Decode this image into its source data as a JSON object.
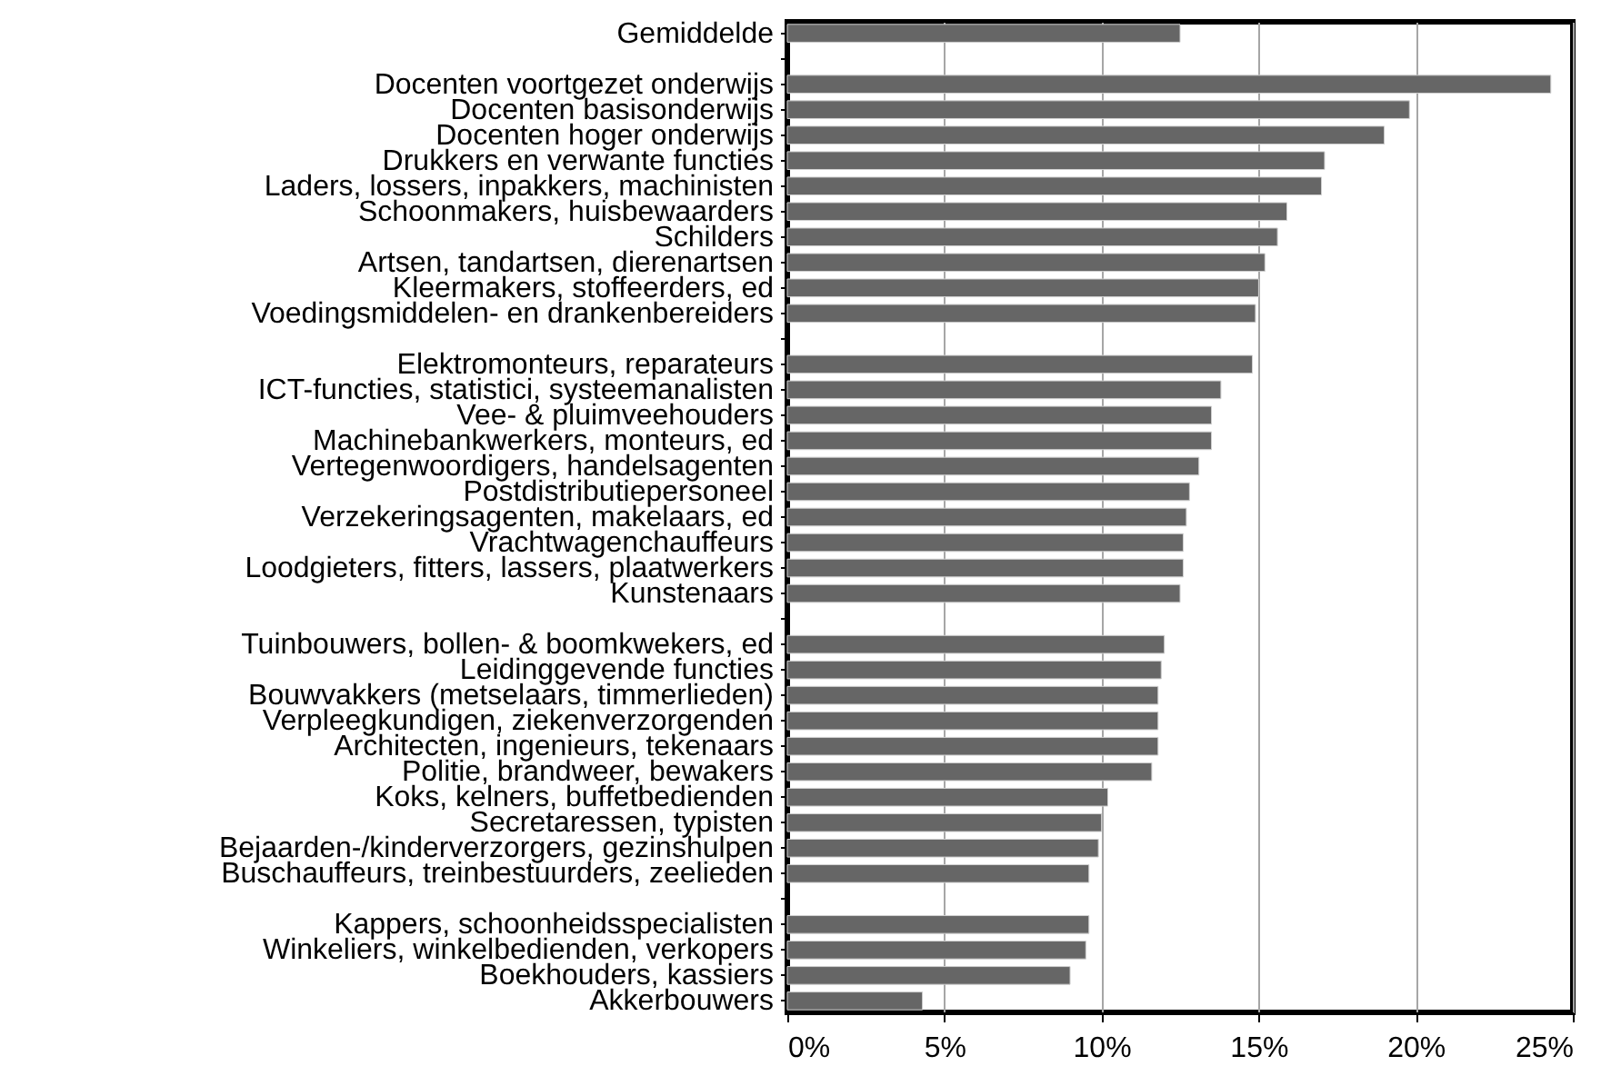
{
  "chart_data": {
    "type": "bar",
    "orientation": "horizontal",
    "categories": [
      "Gemiddelde",
      null,
      "Docenten voortgezet onderwijs",
      "Docenten basisonderwijs",
      "Docenten hoger onderwijs",
      "Drukkers en verwante functies",
      "Laders, lossers, inpakkers, machinisten",
      "Schoonmakers, huisbewaarders",
      "Schilders",
      "Artsen, tandartsen, dierenartsen",
      "Kleermakers, stoffeerders, ed",
      "Voedingsmiddelen- en drankenbereiders",
      null,
      "Elektromonteurs, reparateurs",
      "ICT-functies, statistici, systeemanalisten",
      "Vee- & pluimveehouders",
      "Machinebankwerkers, monteurs, ed",
      "Vertegenwoordigers, handelsagenten",
      "Postdistributiepersoneel",
      "Verzekeringsagenten, makelaars, ed",
      "Vrachtwagenchauffeurs",
      "Loodgieters, fitters, lassers, plaatwerkers",
      "Kunstenaars",
      null,
      "Tuinbouwers, bollen- & boomkwekers, ed",
      "Leidinggevende functies",
      "Bouwvakkers (metselaars, timmerlieden)",
      "Verpleegkundigen, ziekenverzorgenden",
      "Architecten, ingenieurs, tekenaars",
      "Politie, brandweer, bewakers",
      "Koks, kelners, buffetbedienden",
      "Secretaressen, typisten",
      "Bejaarden-/kinderverzorgers, gezinshulpen",
      "Buschauffeurs, treinbestuurders, zeelieden",
      null,
      "Kappers, schoonheidsspecialisten",
      "Winkeliers, winkelbedienden, verkopers",
      "Boekhouders, kassiers",
      "Akkerbouwers"
    ],
    "values": [
      12.5,
      null,
      24.3,
      19.8,
      19.0,
      17.1,
      17.0,
      15.9,
      15.6,
      15.2,
      15.0,
      14.9,
      null,
      14.8,
      13.8,
      13.5,
      13.5,
      13.1,
      12.8,
      12.7,
      12.6,
      12.6,
      12.5,
      null,
      12.0,
      11.9,
      11.8,
      11.8,
      11.8,
      11.6,
      10.2,
      10.0,
      9.9,
      9.6,
      null,
      9.6,
      9.5,
      9.0,
      4.3
    ],
    "color": "#666666",
    "xlim": [
      0,
      25
    ],
    "xticks": [
      {
        "value": 0,
        "label": "0%"
      },
      {
        "value": 5,
        "label": "5%"
      },
      {
        "value": 10,
        "label": "10%"
      },
      {
        "value": 15,
        "label": "15%"
      },
      {
        "value": 20,
        "label": "20%"
      },
      {
        "value": 25,
        "label": "25%"
      }
    ],
    "grid": "x"
  }
}
